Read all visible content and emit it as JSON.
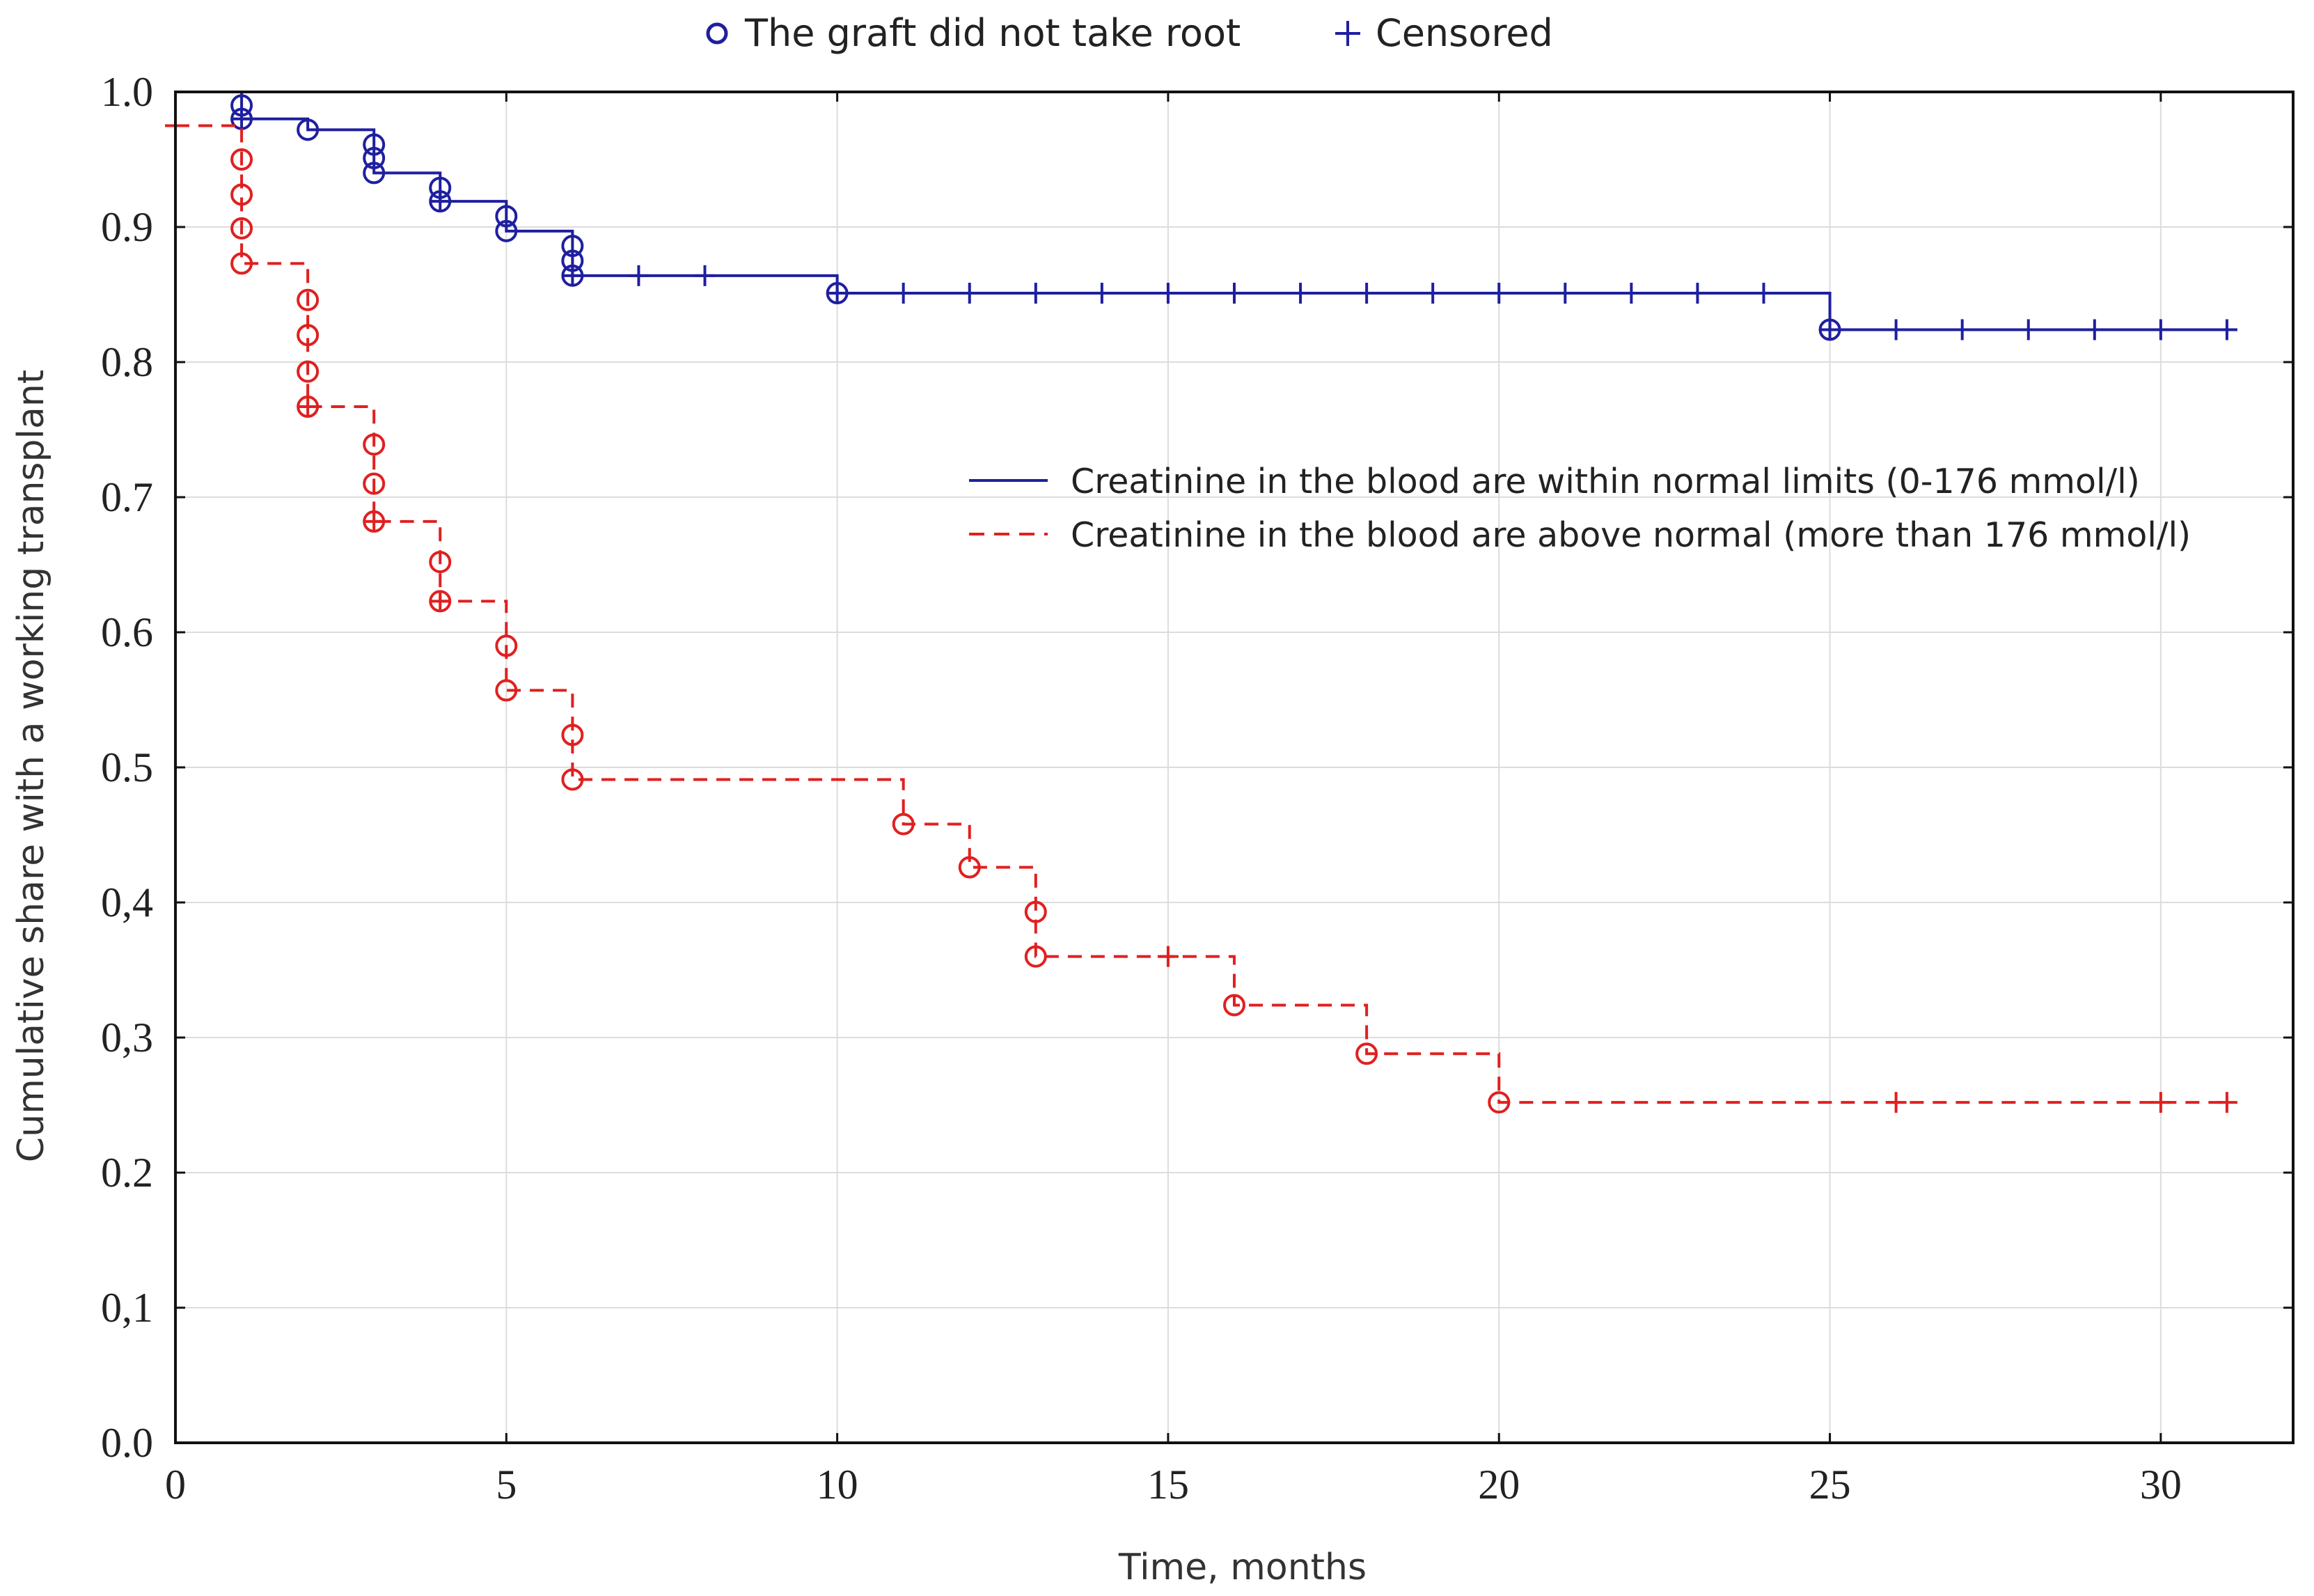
{
  "chart_data": {
    "type": "line",
    "title": "",
    "xlabel": "Time, months",
    "ylabel": "Cumulative share with a working transplant",
    "xlim": [
      0,
      32
    ],
    "ylim": [
      0,
      1.0
    ],
    "x_ticks": [
      0,
      5,
      10,
      15,
      20,
      25,
      30
    ],
    "x_tick_labels": [
      "0",
      "5",
      "10",
      "15",
      "20",
      "25",
      "30"
    ],
    "y_ticks": [
      0,
      0.1,
      0.2,
      0.3,
      0.4,
      0.5,
      0.6,
      0.7,
      0.8,
      0.9,
      1.0
    ],
    "y_tick_labels": [
      "0.0",
      "0,1",
      "0.2",
      "0,3",
      "0,4",
      "0.5",
      "0.6",
      "0.7",
      "0.8",
      "0.9",
      "1.0"
    ],
    "grid": true,
    "marker_legend": [
      {
        "symbol": "circle",
        "label": "The graft did not take root"
      },
      {
        "symbol": "plus",
        "label": "Censored"
      }
    ],
    "series": [
      {
        "name": "Creatinine in the blood are within normal limits (0-176 mmol/l)",
        "color": "#1f1fa0",
        "style": "solid",
        "steps": [
          [
            0,
            1.0
          ],
          [
            1,
            0.98
          ],
          [
            2,
            0.972
          ],
          [
            3,
            0.94
          ],
          [
            4,
            0.919
          ],
          [
            5,
            0.897
          ],
          [
            6,
            0.864
          ],
          [
            10,
            0.851
          ],
          [
            25,
            0.824
          ],
          [
            31,
            0.824
          ]
        ],
        "events": [
          [
            1,
            0.99
          ],
          [
            1,
            0.98
          ],
          [
            2,
            0.972
          ],
          [
            3,
            0.961
          ],
          [
            3,
            0.951
          ],
          [
            3,
            0.94
          ],
          [
            4,
            0.929
          ],
          [
            4,
            0.919
          ],
          [
            5,
            0.908
          ],
          [
            5,
            0.897
          ],
          [
            6,
            0.886
          ],
          [
            6,
            0.875
          ],
          [
            6,
            0.864
          ],
          [
            10,
            0.851
          ],
          [
            25,
            0.824
          ]
        ],
        "censored": [
          [
            1,
            0.98
          ],
          [
            4,
            0.919
          ],
          [
            6,
            0.864
          ],
          [
            7,
            0.864
          ],
          [
            8,
            0.864
          ],
          [
            10,
            0.851
          ],
          [
            11,
            0.851
          ],
          [
            12,
            0.851
          ],
          [
            13,
            0.851
          ],
          [
            14,
            0.851
          ],
          [
            15,
            0.851
          ],
          [
            16,
            0.851
          ],
          [
            17,
            0.851
          ],
          [
            18,
            0.851
          ],
          [
            19,
            0.851
          ],
          [
            20,
            0.851
          ],
          [
            21,
            0.851
          ],
          [
            22,
            0.851
          ],
          [
            23,
            0.851
          ],
          [
            24,
            0.851
          ],
          [
            25,
            0.824
          ],
          [
            26,
            0.824
          ],
          [
            27,
            0.824
          ],
          [
            28,
            0.824
          ],
          [
            29,
            0.824
          ],
          [
            30,
            0.824
          ],
          [
            31,
            0.824
          ]
        ]
      },
      {
        "name": "Creatinine in the blood are above normal (more than 176 mmol/l)",
        "color": "#e02020",
        "style": "dashed",
        "steps": [
          [
            0,
            0.975
          ],
          [
            1,
            0.873
          ],
          [
            2,
            0.767
          ],
          [
            3,
            0.682
          ],
          [
            4,
            0.623
          ],
          [
            5,
            0.557
          ],
          [
            6,
            0.491
          ],
          [
            11,
            0.458
          ],
          [
            12,
            0.426
          ],
          [
            13,
            0.36
          ],
          [
            16,
            0.324
          ],
          [
            18,
            0.288
          ],
          [
            20,
            0.252
          ],
          [
            31,
            0.252
          ]
        ],
        "events": [
          [
            1,
            0.95
          ],
          [
            1,
            0.924
          ],
          [
            1,
            0.899
          ],
          [
            1,
            0.873
          ],
          [
            2,
            0.846
          ],
          [
            2,
            0.82
          ],
          [
            2,
            0.793
          ],
          [
            2,
            0.767
          ],
          [
            3,
            0.739
          ],
          [
            3,
            0.71
          ],
          [
            3,
            0.682
          ],
          [
            4,
            0.652
          ],
          [
            4,
            0.623
          ],
          [
            5,
            0.59
          ],
          [
            5,
            0.557
          ],
          [
            6,
            0.524
          ],
          [
            6,
            0.491
          ],
          [
            11,
            0.458
          ],
          [
            12,
            0.426
          ],
          [
            13,
            0.393
          ],
          [
            13,
            0.36
          ],
          [
            16,
            0.324
          ],
          [
            18,
            0.288
          ],
          [
            20,
            0.252
          ]
        ],
        "censored": [
          [
            0,
            0.975
          ],
          [
            2,
            0.767
          ],
          [
            3,
            0.682
          ],
          [
            4,
            0.623
          ],
          [
            15,
            0.36
          ],
          [
            26,
            0.252
          ],
          [
            30,
            0.252
          ],
          [
            31,
            0.252
          ]
        ]
      }
    ]
  }
}
